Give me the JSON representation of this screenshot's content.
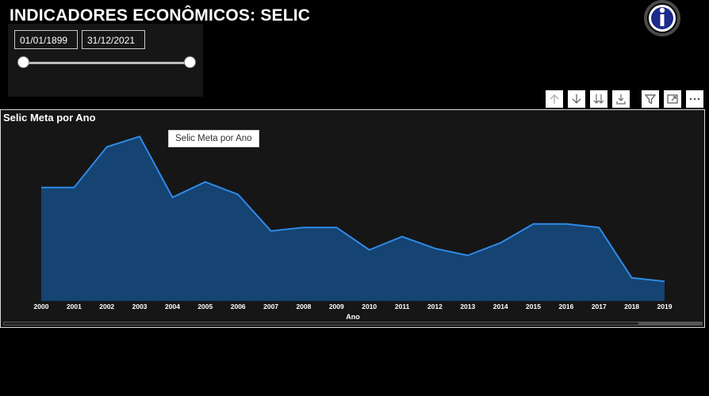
{
  "page": {
    "title": "INDICADORES ECONÔMICOS: SELIC"
  },
  "slicer": {
    "start_date": "01/01/1899",
    "end_date": "31/12/2021"
  },
  "toolbar": {
    "icons": [
      "arrow-up-icon",
      "arrow-down-icon",
      "double-arrow-down-icon",
      "expand-hierarchy-icon",
      "filter-icon",
      "focus-mode-icon",
      "more-options-icon"
    ]
  },
  "visual": {
    "title": "Selic Meta por Ano",
    "tooltip": "Selic Meta por Ano"
  },
  "colors": {
    "area_fill": "#154372",
    "line": "#2f8ae6",
    "background": "#000000",
    "visual_bg": "#161616"
  },
  "chart_data": {
    "type": "area",
    "title": "Selic Meta por Ano",
    "xlabel": "Ano",
    "ylabel": "",
    "x": [
      "2000",
      "2001",
      "2002",
      "2003",
      "2004",
      "2005",
      "2006",
      "2007",
      "2008",
      "2009",
      "2010",
      "2011",
      "2012",
      "2013",
      "2014",
      "2015",
      "2016",
      "2017",
      "2018",
      "2019"
    ],
    "values": [
      16.2,
      16.2,
      22.0,
      23.5,
      14.8,
      17.0,
      15.2,
      10.0,
      10.5,
      10.5,
      7.3,
      9.2,
      7.5,
      6.5,
      8.3,
      11.0,
      11.0,
      10.5,
      3.3,
      2.8
    ],
    "ylim": [
      0,
      25
    ],
    "grid": false,
    "legend": "none"
  }
}
